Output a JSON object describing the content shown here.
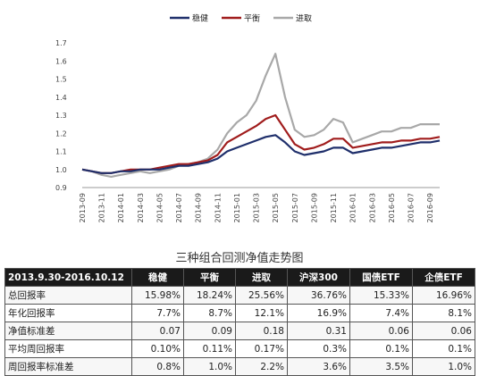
{
  "chart_data": {
    "type": "line",
    "title": "",
    "xlabel": "",
    "ylabel": "",
    "ylim": [
      0.9,
      1.7
    ],
    "yticks": [
      "0.9",
      "1.0",
      "1.1",
      "1.2",
      "1.3",
      "1.4",
      "1.5",
      "1.6",
      "1.7"
    ],
    "xticks": [
      "2013-09",
      "2013-11",
      "2014-01",
      "2014-03",
      "2014-05",
      "2014-07",
      "2014-09",
      "2014-11",
      "2015-01",
      "2015-03",
      "2015-05",
      "2015-07",
      "2015-09",
      "2015-11",
      "2016-01",
      "2016-03",
      "2016-05",
      "2016-07",
      "2016-09"
    ],
    "x": [
      "2013-09",
      "2013-10",
      "2013-11",
      "2013-12",
      "2014-01",
      "2014-02",
      "2014-03",
      "2014-04",
      "2014-05",
      "2014-06",
      "2014-07",
      "2014-08",
      "2014-09",
      "2014-10",
      "2014-11",
      "2014-12",
      "2015-01",
      "2015-02",
      "2015-03",
      "2015-04",
      "2015-05",
      "2015-06",
      "2015-07",
      "2015-08",
      "2015-09",
      "2015-10",
      "2015-11",
      "2015-12",
      "2016-01",
      "2016-02",
      "2016-03",
      "2016-04",
      "2016-05",
      "2016-06",
      "2016-07",
      "2016-08",
      "2016-09",
      "2016-10"
    ],
    "legend_position": "top",
    "grid": false,
    "series": [
      {
        "name": "稳健",
        "color": "#1f2f6b",
        "values": [
          1.0,
          0.99,
          0.98,
          0.98,
          0.99,
          0.99,
          1.0,
          1.0,
          1.0,
          1.01,
          1.02,
          1.02,
          1.03,
          1.04,
          1.06,
          1.1,
          1.12,
          1.14,
          1.16,
          1.18,
          1.19,
          1.15,
          1.1,
          1.08,
          1.09,
          1.1,
          1.12,
          1.12,
          1.09,
          1.1,
          1.11,
          1.12,
          1.12,
          1.13,
          1.14,
          1.15,
          1.15,
          1.16
        ]
      },
      {
        "name": "平衡",
        "color": "#a01c1c",
        "values": [
          1.0,
          0.99,
          0.98,
          0.98,
          0.99,
          1.0,
          1.0,
          1.0,
          1.01,
          1.02,
          1.03,
          1.03,
          1.04,
          1.05,
          1.08,
          1.15,
          1.18,
          1.21,
          1.24,
          1.28,
          1.3,
          1.22,
          1.14,
          1.11,
          1.12,
          1.14,
          1.17,
          1.17,
          1.12,
          1.13,
          1.14,
          1.15,
          1.15,
          1.16,
          1.16,
          1.17,
          1.17,
          1.18
        ]
      },
      {
        "name": "进取",
        "color": "#a8a8a8",
        "values": [
          1.0,
          0.99,
          0.97,
          0.96,
          0.97,
          0.98,
          0.99,
          0.98,
          0.99,
          1.0,
          1.02,
          1.03,
          1.04,
          1.06,
          1.11,
          1.2,
          1.26,
          1.3,
          1.38,
          1.52,
          1.64,
          1.4,
          1.22,
          1.18,
          1.19,
          1.22,
          1.28,
          1.26,
          1.15,
          1.17,
          1.19,
          1.21,
          1.21,
          1.23,
          1.23,
          1.25,
          1.25,
          1.25
        ]
      }
    ]
  },
  "caption": "三种组合回测净值走势图",
  "table": {
    "header": [
      "2013.9.30-2016.10.12",
      "稳健",
      "平衡",
      "进取",
      "沪深300",
      "国债ETF",
      "企债ETF"
    ],
    "rows": [
      [
        "总回报率",
        "15.98%",
        "18.24%",
        "25.56%",
        "36.76%",
        "15.33%",
        "16.96%"
      ],
      [
        "年化回报率",
        "7.7%",
        "8.7%",
        "12.1%",
        "16.9%",
        "7.4%",
        "8.1%"
      ],
      [
        "净值标准差",
        "0.07",
        "0.09",
        "0.18",
        "0.31",
        "0.06",
        "0.06"
      ],
      [
        "平均周回报率",
        "0.10%",
        "0.11%",
        "0.17%",
        "0.3%",
        "0.1%",
        "0.1%"
      ],
      [
        "周回报率标准差",
        "0.8%",
        "1.0%",
        "2.2%",
        "3.6%",
        "3.5%",
        "1.0%"
      ]
    ]
  }
}
